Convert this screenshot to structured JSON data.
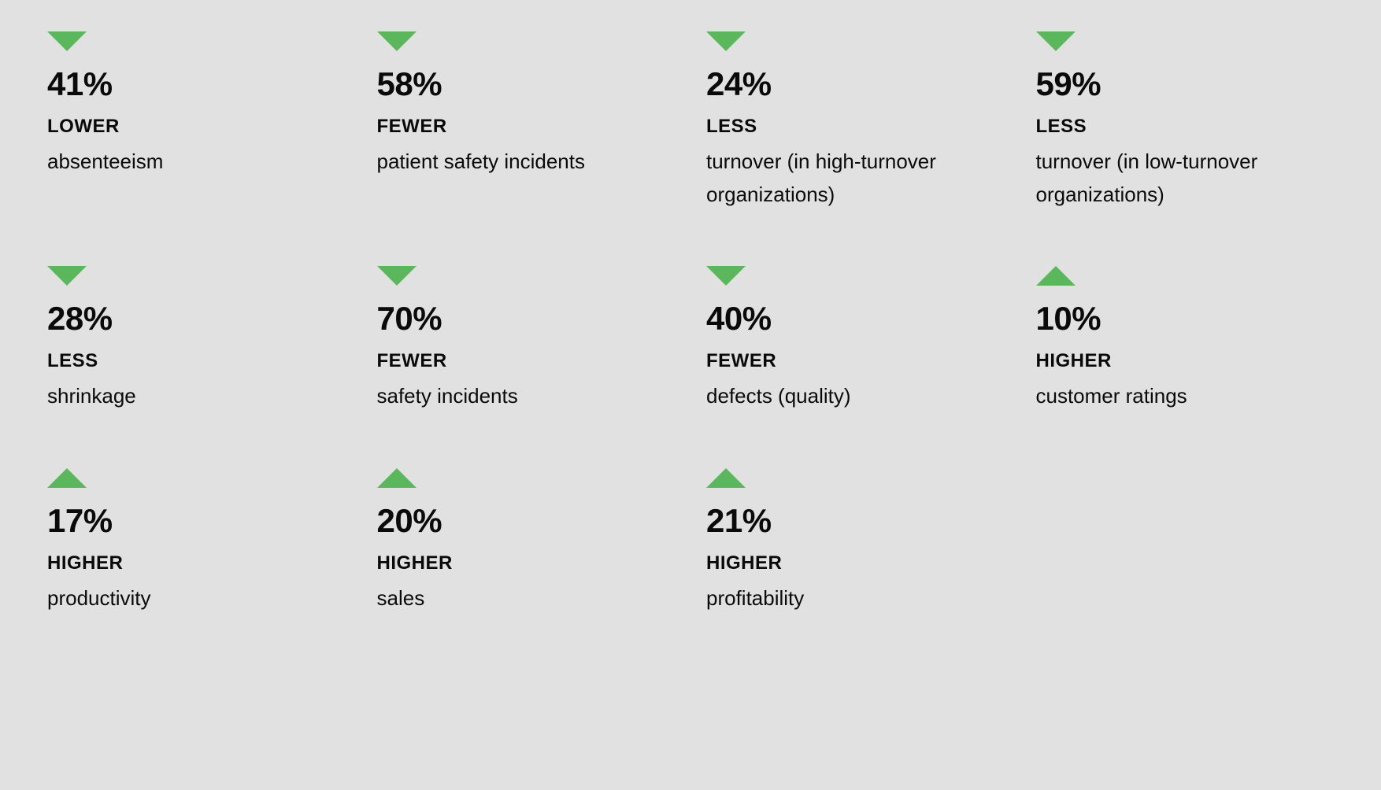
{
  "layout": {
    "columns": 4,
    "background_color": "#e1e1e1",
    "triangle_color": "#5bb75b",
    "text_color": "#0a0a0a",
    "percentage_fontsize": 42,
    "qualifier_fontsize": 24,
    "description_fontsize": 26
  },
  "stats": [
    {
      "direction": "down",
      "percentage": "41%",
      "qualifier": "LOWER",
      "description": "absenteeism"
    },
    {
      "direction": "down",
      "percentage": "58%",
      "qualifier": "FEWER",
      "description": "patient safety incidents"
    },
    {
      "direction": "down",
      "percentage": "24%",
      "qualifier": "LESS",
      "description": "turnover\n(in high-turnover organizations)"
    },
    {
      "direction": "down",
      "percentage": "59%",
      "qualifier": "LESS",
      "description": "turnover\n(in low-turnover organizations)"
    },
    {
      "direction": "down",
      "percentage": "28%",
      "qualifier": "LESS",
      "description": "shrinkage"
    },
    {
      "direction": "down",
      "percentage": "70%",
      "qualifier": "FEWER",
      "description": "safety incidents"
    },
    {
      "direction": "down",
      "percentage": "40%",
      "qualifier": "FEWER",
      "description": "defects (quality)"
    },
    {
      "direction": "up",
      "percentage": "10%",
      "qualifier": "HIGHER",
      "description": "customer ratings"
    },
    {
      "direction": "up",
      "percentage": "17%",
      "qualifier": "HIGHER",
      "description": "productivity"
    },
    {
      "direction": "up",
      "percentage": "20%",
      "qualifier": "HIGHER",
      "description": "sales"
    },
    {
      "direction": "up",
      "percentage": "21%",
      "qualifier": "HIGHER",
      "description": "profitability"
    }
  ]
}
